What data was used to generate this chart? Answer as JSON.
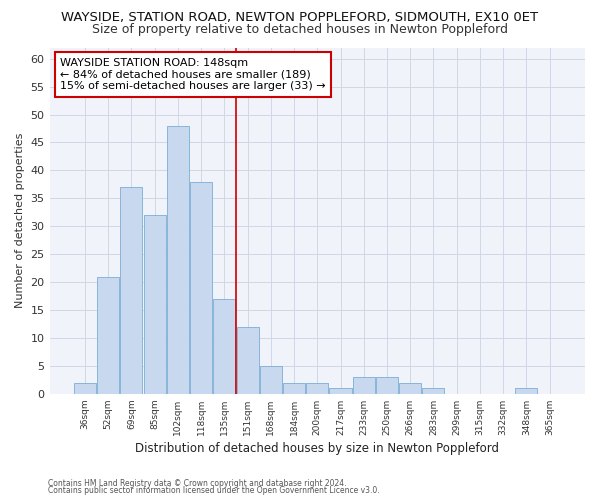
{
  "title": "WAYSIDE, STATION ROAD, NEWTON POPPLEFORD, SIDMOUTH, EX10 0ET",
  "subtitle": "Size of property relative to detached houses in Newton Poppleford",
  "xlabel": "Distribution of detached houses by size in Newton Poppleford",
  "ylabel": "Number of detached properties",
  "footer1": "Contains HM Land Registry data © Crown copyright and database right 2024.",
  "footer2": "Contains public sector information licensed under the Open Government Licence v3.0.",
  "bar_labels": [
    "36sqm",
    "52sqm",
    "69sqm",
    "85sqm",
    "102sqm",
    "118sqm",
    "135sqm",
    "151sqm",
    "168sqm",
    "184sqm",
    "200sqm",
    "217sqm",
    "233sqm",
    "250sqm",
    "266sqm",
    "283sqm",
    "299sqm",
    "315sqm",
    "332sqm",
    "348sqm",
    "365sqm"
  ],
  "bar_values": [
    2,
    21,
    37,
    32,
    48,
    38,
    17,
    12,
    5,
    2,
    2,
    1,
    3,
    3,
    2,
    1,
    0,
    0,
    0,
    1,
    0
  ],
  "bar_color": "#c8d9ef",
  "bar_edge_color": "#7aadd4",
  "vline_x": 7,
  "vline_color": "#cc0000",
  "annotation_text": "WAYSIDE STATION ROAD: 148sqm\n← 84% of detached houses are smaller (189)\n15% of semi-detached houses are larger (33) →",
  "annotation_box_color": "#ffffff",
  "annotation_box_edge_color": "#cc0000",
  "ylim": [
    0,
    62
  ],
  "yticks": [
    0,
    5,
    10,
    15,
    20,
    25,
    30,
    35,
    40,
    45,
    50,
    55,
    60
  ],
  "fig_bg_color": "#ffffff",
  "plot_bg_color": "#f0f4fa",
  "grid_color": "#d0d8e8",
  "title_fontsize": 9.5,
  "subtitle_fontsize": 9.0,
  "title_fontweight": "normal"
}
